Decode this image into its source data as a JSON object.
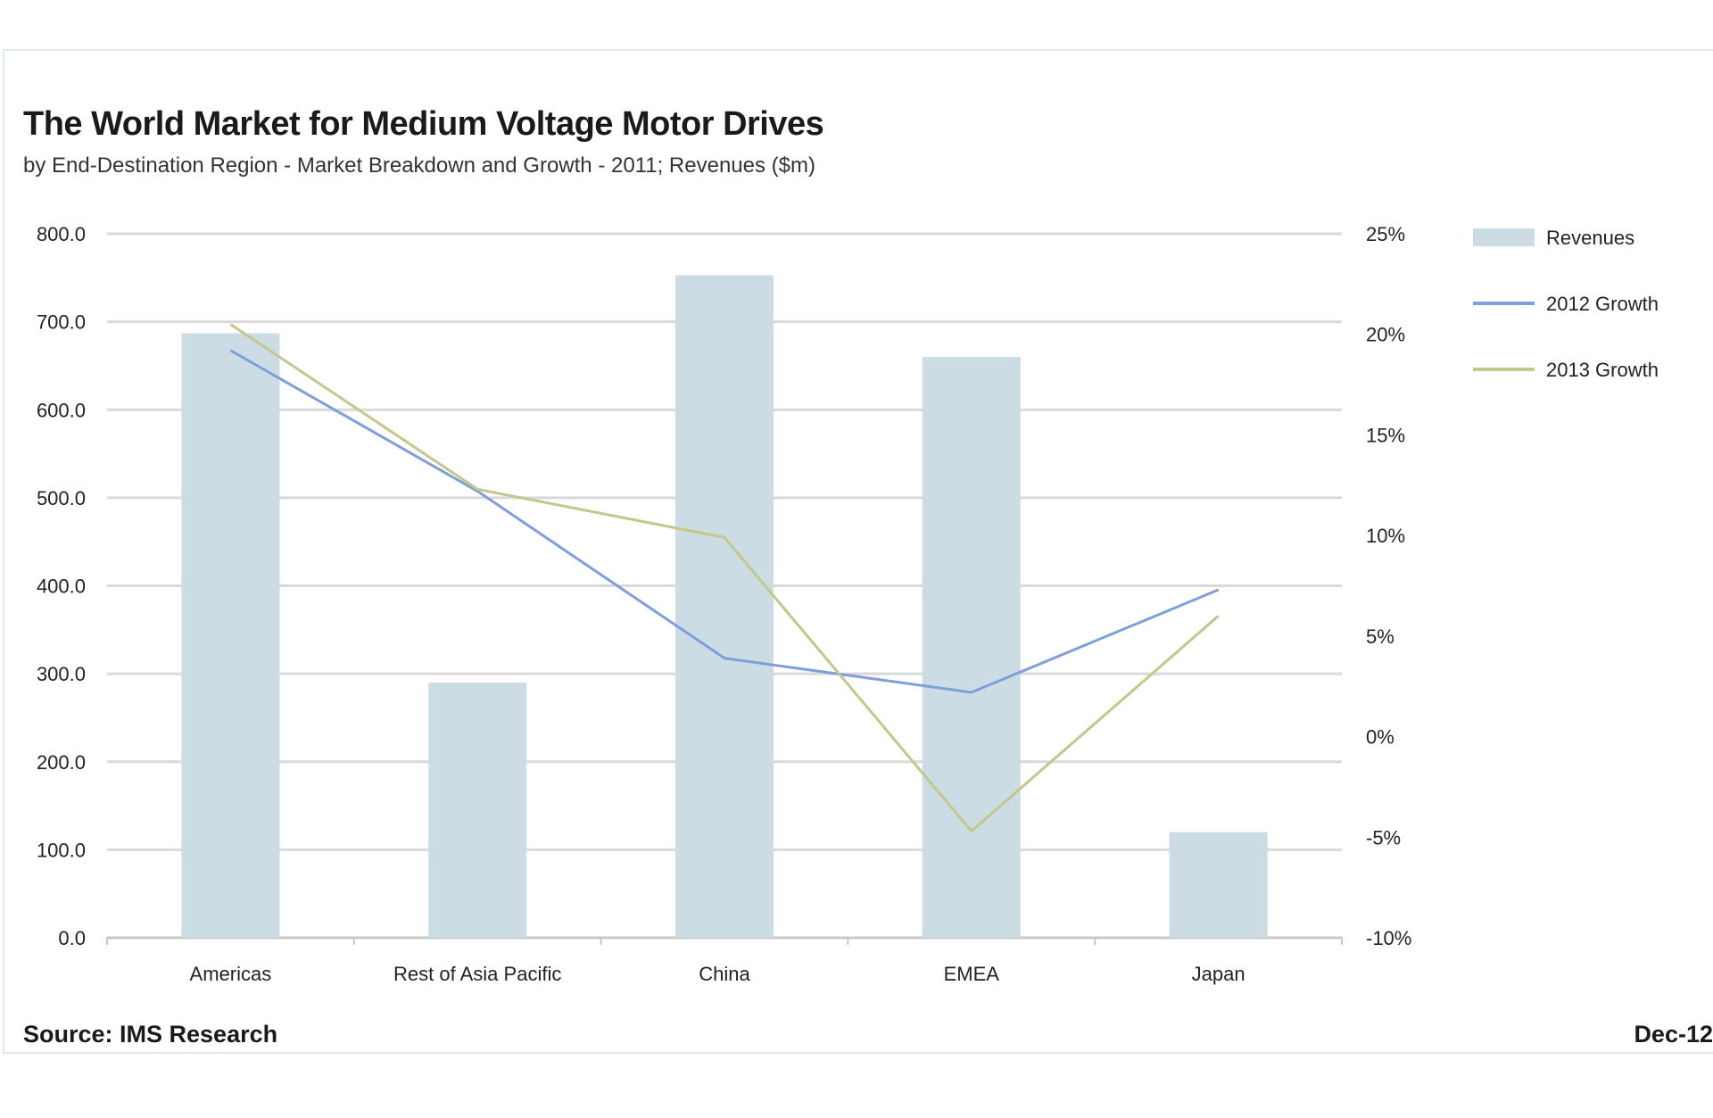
{
  "chart_data": {
    "type": "bar",
    "title": "The World Market for Medium Voltage Motor Drives",
    "subtitle": "by End-Destination Region - Market Breakdown and Growth - 2011; Revenues ($m)",
    "categories": [
      "Americas",
      "Rest of Asia Pacific",
      "China",
      "EMEA",
      "Japan"
    ],
    "series": [
      {
        "name": "Revenues",
        "type": "bar",
        "axis": "left",
        "color": "#ccdce5",
        "values": [
          687,
          290,
          753,
          660,
          120
        ]
      },
      {
        "name": "2012 Growth",
        "type": "line",
        "axis": "right",
        "color": "#7f9fdc",
        "values": [
          19.2,
          12.2,
          3.9,
          2.2,
          7.3
        ]
      },
      {
        "name": "2013 Growth",
        "type": "line",
        "axis": "right",
        "color": "#c4c78a",
        "values": [
          20.5,
          12.3,
          9.9,
          -4.7,
          6.0
        ]
      }
    ],
    "y_left": {
      "range": [
        0,
        800
      ],
      "ticks": [
        "0.0",
        "100.0",
        "200.0",
        "300.0",
        "400.0",
        "500.0",
        "600.0",
        "700.0",
        "800.0"
      ]
    },
    "y_right": {
      "range": [
        -10,
        25
      ],
      "ticks": [
        "-10%",
        "-5%",
        "0%",
        "5%",
        "10%",
        "15%",
        "20%",
        "25%"
      ]
    },
    "grid": true,
    "legend": "right",
    "source": "Source: IMS Research",
    "date": "Dec-12"
  }
}
